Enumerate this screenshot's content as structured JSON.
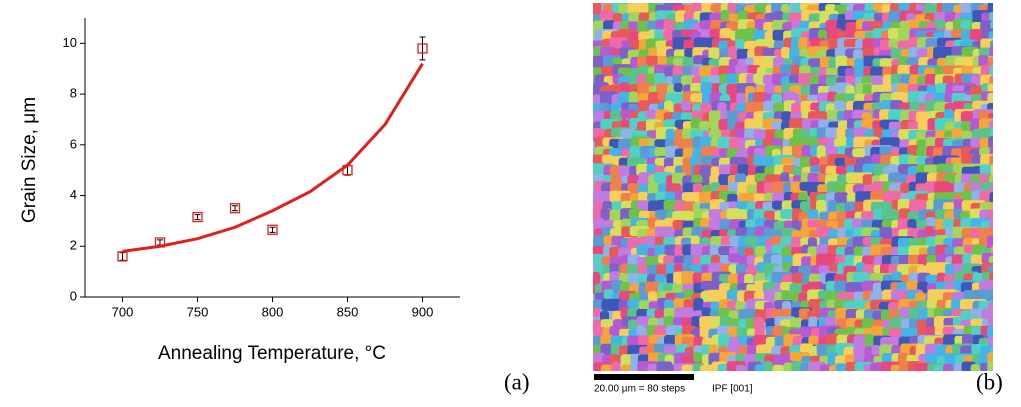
{
  "chart_data": {
    "type": "scatter",
    "xlabel": "Annealing Temperature, °C",
    "ylabel": "Grain Size, μm",
    "xlim": [
      675,
      925
    ],
    "xticks": [
      700,
      750,
      800,
      850,
      900
    ],
    "ylim": [
      0,
      11
    ],
    "yticks": [
      0,
      2,
      4,
      6,
      8,
      10
    ],
    "series": [
      {
        "color": "#e0201b",
        "marker": "square",
        "x": [
          700,
          725,
          750,
          775,
          800,
          850,
          900
        ],
        "values": [
          1.6,
          2.15,
          3.15,
          3.5,
          2.65,
          5.0,
          9.8
        ],
        "errors": [
          0.15,
          0.1,
          0.1,
          0.1,
          0.1,
          0.2,
          0.45
        ]
      },
      {
        "color": "#e0201b",
        "marker": "none",
        "x": [
          700,
          725,
          750,
          775,
          800,
          825,
          850,
          875,
          900
        ],
        "values": [
          1.8,
          2.0,
          2.3,
          2.75,
          3.4,
          4.15,
          5.2,
          6.8,
          9.2
        ]
      }
    ]
  },
  "panels": {
    "a": "(a)",
    "b": "(b)"
  },
  "image": {
    "scale_bar": "20.00 µm = 80 steps",
    "map": "IPF [001]"
  }
}
